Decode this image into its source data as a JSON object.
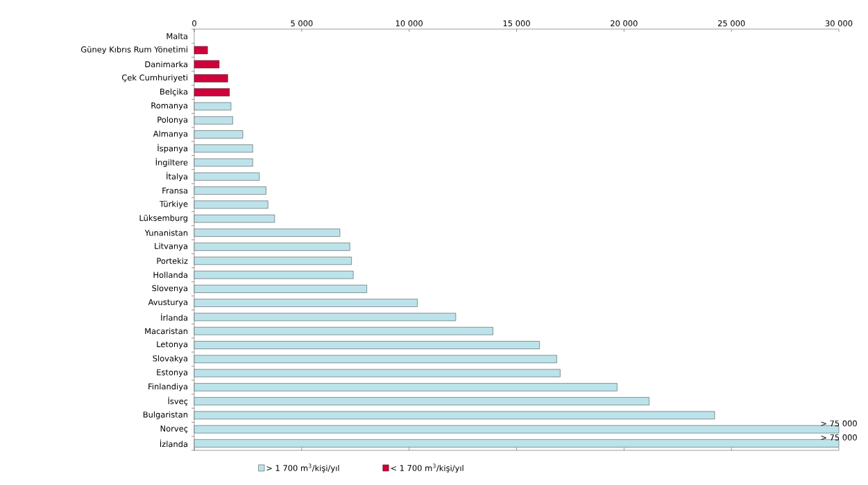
{
  "chart_data": {
    "type": "bar",
    "orientation": "horizontal",
    "categories": [
      "Malta",
      "Güney Kıbrıs Rum Yönetimi",
      "Danimarka",
      "Çek Cumhuriyeti",
      "Belçika",
      "Romanya",
      "Polonya",
      "Almanya",
      "İspanya",
      "İngiltere",
      "İtalya",
      "Fransa",
      "Türkiye",
      "Lüksemburg",
      "Yunanistan",
      "Litvanya",
      "Portekiz",
      "Hollanda",
      "Slovenya",
      "Avusturya",
      "İrlanda",
      "Macaristan",
      "Letonya",
      "Slovakya",
      "Estonya",
      "Finlandiya",
      "İsveç",
      "Bulgaristan",
      "Norveç",
      "İzlanda"
    ],
    "series": [
      {
        "name": "> 1 700 m$^{3}$/kişi/yıl",
        "color": "#bde3ea",
        "values": [
          null,
          null,
          null,
          null,
          null,
          1710,
          1790,
          2260,
          2720,
          2720,
          3030,
          3340,
          3430,
          3740,
          6780,
          7240,
          7320,
          7400,
          8030,
          10380,
          12170,
          13900,
          16070,
          16870,
          17030,
          19680,
          21170,
          24220,
          30000,
          30000
        ],
        "value_labels": [
          null,
          null,
          null,
          null,
          null,
          null,
          null,
          null,
          null,
          null,
          null,
          null,
          null,
          null,
          null,
          null,
          null,
          null,
          null,
          null,
          null,
          null,
          null,
          null,
          null,
          null,
          null,
          null,
          "> 75 000",
          "> 75 000"
        ]
      },
      {
        "name": "< 1 700 m$^{3}$/kişi/yıl",
        "color": "#d0003a",
        "values": [
          null,
          620,
          1160,
          1560,
          1640,
          null,
          null,
          null,
          null,
          null,
          null,
          null,
          null,
          null,
          null,
          null,
          null,
          null,
          null,
          null,
          null,
          null,
          null,
          null,
          null,
          null,
          null,
          null,
          null,
          null
        ]
      }
    ],
    "xlim": [
      0,
      30000
    ],
    "xticks": [
      0,
      {
        "value": 5000,
        "label": "5 000"
      },
      {
        "value": 10000,
        "label": "10 000"
      },
      {
        "value": 15000,
        "label": "15 000"
      },
      {
        "value": 20000,
        "label": "20 000"
      },
      {
        "value": 25000,
        "label": "25 000"
      },
      {
        "value": 30000,
        "label": "30 000"
      }
    ],
    "grid": false,
    "legend": "bottom"
  }
}
